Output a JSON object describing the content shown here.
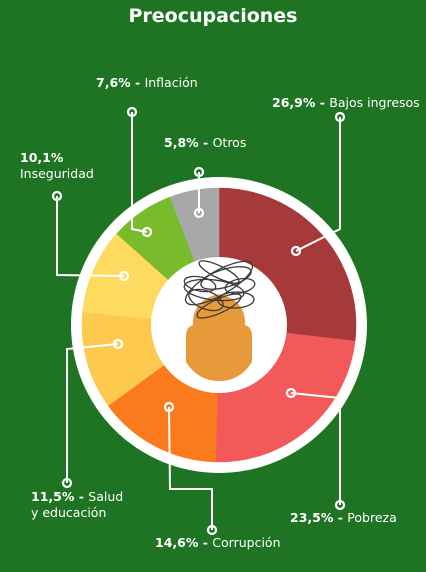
{
  "colors": {
    "background": "#1f7423",
    "ring": "#ffffff",
    "center_disc": "#ffffff",
    "head": "#e79a3a",
    "scribble": "#3a3a3a"
  },
  "chart_data": {
    "type": "pie",
    "title": "Preocupaciones",
    "slices": [
      {
        "id": "bajos",
        "label": "Bajos ingresos",
        "value": 26.9,
        "pct_text": "26,9%",
        "color": "#a63a3a"
      },
      {
        "id": "pobreza",
        "label": "Pobreza",
        "value": 23.5,
        "pct_text": "23,5%",
        "color": "#f25a5a"
      },
      {
        "id": "corrupcion",
        "label": "Corrupción",
        "value": 14.6,
        "pct_text": "14,6%",
        "color": "#fb7a1e"
      },
      {
        "id": "salud",
        "label": "Salud y educación",
        "label_lines": [
          "Salud",
          "y educación"
        ],
        "value": 11.5,
        "pct_text": "11,5%",
        "color": "#fec94f"
      },
      {
        "id": "inseguridad",
        "label": "Inseguridad",
        "value": 10.1,
        "pct_text": "10,1%",
        "color": "#fedb5e"
      },
      {
        "id": "inflacion",
        "label": "Inflación",
        "value": 7.6,
        "pct_text": "7,6%",
        "color": "#79bb2a"
      },
      {
        "id": "otros",
        "label": "Otros",
        "value": 5.8,
        "pct_text": "5,8%",
        "color": "#a8a8a8"
      }
    ]
  }
}
